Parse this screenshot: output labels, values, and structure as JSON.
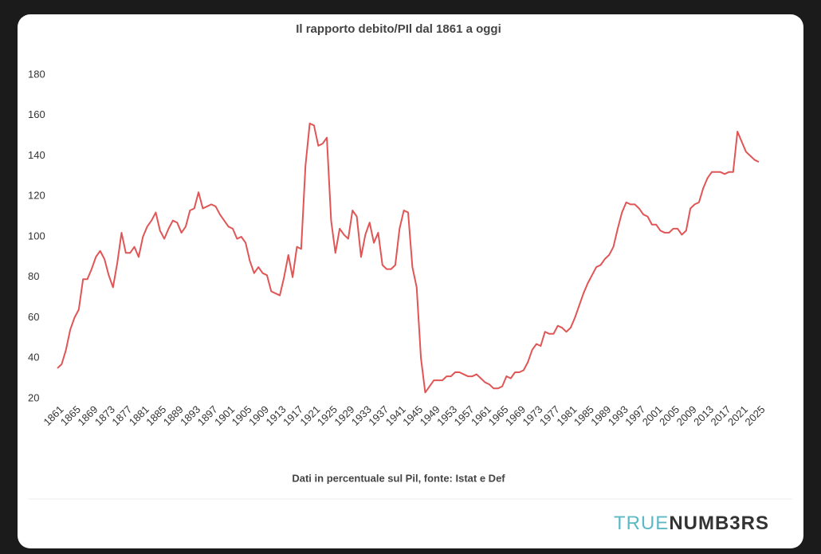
{
  "chart_data": {
    "type": "line",
    "title": "Il rapporto debito/PIl dal 1861 a oggi",
    "subtitle": "Dati in percentuale sul Pil, fonte: Istat e Def",
    "logo": {
      "first": "TRUE",
      "second": "NUMB3RS"
    },
    "color": "#e05555",
    "grid": false,
    "x": [
      1861,
      1862,
      1863,
      1864,
      1865,
      1866,
      1867,
      1868,
      1869,
      1870,
      1871,
      1872,
      1873,
      1874,
      1875,
      1876,
      1877,
      1878,
      1879,
      1880,
      1881,
      1882,
      1883,
      1884,
      1885,
      1886,
      1887,
      1888,
      1889,
      1890,
      1891,
      1892,
      1893,
      1894,
      1895,
      1896,
      1897,
      1898,
      1899,
      1900,
      1901,
      1902,
      1903,
      1904,
      1905,
      1906,
      1907,
      1908,
      1909,
      1910,
      1911,
      1912,
      1913,
      1914,
      1915,
      1916,
      1917,
      1918,
      1919,
      1920,
      1921,
      1922,
      1923,
      1924,
      1925,
      1926,
      1927,
      1928,
      1929,
      1930,
      1931,
      1932,
      1933,
      1934,
      1935,
      1936,
      1937,
      1938,
      1939,
      1940,
      1941,
      1942,
      1943,
      1944,
      1945,
      1946,
      1947,
      1948,
      1949,
      1950,
      1951,
      1952,
      1953,
      1954,
      1955,
      1956,
      1957,
      1958,
      1959,
      1960,
      1961,
      1962,
      1963,
      1964,
      1965,
      1966,
      1967,
      1968,
      1969,
      1970,
      1971,
      1972,
      1973,
      1974,
      1975,
      1976,
      1977,
      1978,
      1979,
      1980,
      1981,
      1982,
      1983,
      1984,
      1985,
      1986,
      1987,
      1988,
      1989,
      1990,
      1991,
      1992,
      1993,
      1994,
      1995,
      1996,
      1997,
      1998,
      1999,
      2000,
      2001,
      2002,
      2003,
      2004,
      2005,
      2006,
      2007,
      2008,
      2009,
      2010,
      2011,
      2012,
      2013,
      2014,
      2015,
      2016,
      2017,
      2018,
      2019,
      2020,
      2021,
      2022,
      2023,
      2024,
      2025
    ],
    "values": [
      35,
      37,
      44,
      54,
      60,
      64,
      79,
      79,
      84,
      90,
      93,
      89,
      81,
      75,
      87,
      102,
      92,
      92,
      95,
      90,
      100,
      105,
      108,
      112,
      103,
      99,
      104,
      108,
      107,
      102,
      105,
      113,
      114,
      122,
      114,
      115,
      116,
      115,
      111,
      108,
      105,
      104,
      99,
      100,
      97,
      88,
      82,
      85,
      82,
      81,
      73,
      72,
      71,
      80,
      91,
      80,
      95,
      94,
      135,
      156,
      155,
      145,
      146,
      149,
      108,
      92,
      104,
      101,
      99,
      113,
      110,
      90,
      101,
      107,
      97,
      102,
      86,
      84,
      84,
      86,
      104,
      113,
      112,
      85,
      75,
      40,
      23,
      26,
      29,
      29,
      29,
      31,
      31,
      33,
      33,
      32,
      31,
      31,
      32,
      30,
      28,
      27,
      25,
      25,
      26,
      31,
      30,
      33,
      33,
      34,
      38,
      44,
      47,
      46,
      53,
      52,
      52,
      56,
      55,
      53,
      55,
      60,
      66,
      72,
      77,
      81,
      85,
      86,
      89,
      91,
      95,
      104,
      112,
      117,
      116,
      116,
      114,
      111,
      110,
      106,
      106,
      103,
      102,
      102,
      104,
      104,
      101,
      103,
      114,
      116,
      117,
      124,
      129,
      132,
      132,
      132,
      131,
      132,
      132,
      152,
      147,
      142,
      140,
      138,
      137
    ],
    "xlim": [
      1861,
      2025
    ],
    "xticks": [
      1861,
      1865,
      1869,
      1873,
      1877,
      1881,
      1885,
      1889,
      1893,
      1897,
      1901,
      1905,
      1909,
      1913,
      1917,
      1921,
      1925,
      1929,
      1933,
      1937,
      1941,
      1945,
      1949,
      1953,
      1957,
      1961,
      1965,
      1969,
      1973,
      1977,
      1981,
      1985,
      1989,
      1993,
      1997,
      2001,
      2005,
      2009,
      2013,
      2017,
      2021,
      2025
    ],
    "ylim": [
      20,
      180
    ],
    "yticks": [
      20,
      40,
      60,
      80,
      100,
      120,
      140,
      160,
      180
    ]
  }
}
